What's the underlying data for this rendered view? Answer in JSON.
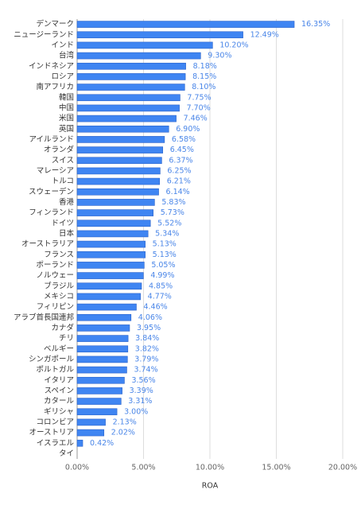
{
  "chart_data": {
    "type": "hbar",
    "x_label": "ROA",
    "categories": [
      "デンマーク",
      "ニュージーランド",
      "インド",
      "台湾",
      "インドネシア",
      "ロシア",
      "南アフリカ",
      "韓国",
      "中国",
      "米国",
      "英国",
      "アイルランド",
      "オランダ",
      "スイス",
      "マレーシア",
      "トルコ",
      "スウェーデン",
      "香港",
      "フィンランド",
      "ドイツ",
      "日本",
      "オーストラリア",
      "フランス",
      "ポーランド",
      "ノルウェー",
      "ブラジル",
      "メキシコ",
      "フィリピン",
      "アラブ首長国連邦",
      "カナダ",
      "チリ",
      "ベルギー",
      "シンガポール",
      "ポルトガル",
      "イタリア",
      "スペイン",
      "カタール",
      "ギリシャ",
      "コロンビア",
      "オーストリア",
      "イスラエル",
      "タイ"
    ],
    "values": [
      16.35,
      12.49,
      10.2,
      9.3,
      8.18,
      8.15,
      8.1,
      7.75,
      7.7,
      7.46,
      6.9,
      6.58,
      6.45,
      6.37,
      6.25,
      6.21,
      6.14,
      5.83,
      5.73,
      5.52,
      5.34,
      5.13,
      5.13,
      5.05,
      4.99,
      4.85,
      4.77,
      4.46,
      4.06,
      3.95,
      3.84,
      3.82,
      3.79,
      3.74,
      3.56,
      3.39,
      3.31,
      3.0,
      2.13,
      2.02,
      0.42,
      null
    ],
    "value_labels": [
      "16.35%",
      "12.49%",
      "10.20%",
      "9.30%",
      "8.18%",
      "8.15%",
      "8.10%",
      "7.75%",
      "7.70%",
      "7.46%",
      "6.90%",
      "6.58%",
      "6.45%",
      "6.37%",
      "6.25%",
      "6.21%",
      "6.14%",
      "5.83%",
      "5.73%",
      "5.52%",
      "5.34%",
      "5.13%",
      "5.13%",
      "5.05%",
      "4.99%",
      "4.85%",
      "4.77%",
      "4.46%",
      "4.06%",
      "3.95%",
      "3.84%",
      "3.82%",
      "3.79%",
      "3.74%",
      "3.56%",
      "3.39%",
      "3.31%",
      "3.00%",
      "2.13%",
      "2.02%",
      "0.42%",
      null
    ],
    "color": "#3f85f2",
    "xlim": [
      0,
      20
    ],
    "xticks": [
      {
        "value": 0,
        "label": "0.00%"
      },
      {
        "value": 5,
        "label": "5.00%"
      },
      {
        "value": 10,
        "label": "10.00%"
      },
      {
        "value": 15,
        "label": "15.00%"
      },
      {
        "value": 20,
        "label": "20.00%"
      }
    ],
    "grid": true
  }
}
